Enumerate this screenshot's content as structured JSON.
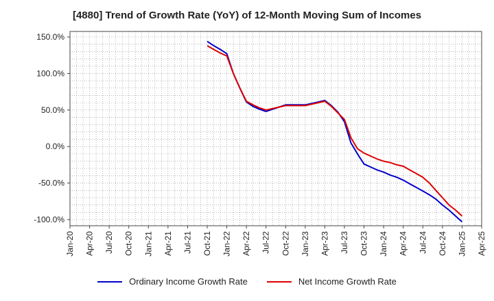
{
  "chart_data": {
    "type": "line",
    "title": "[4880]  Trend of Growth Rate (YoY) of 12-Month Moving Sum of Incomes",
    "xlabel": "",
    "ylabel": "",
    "ylim": [
      -105,
      150
    ],
    "y_ticks": [
      "150.0%",
      "100.0%",
      "50.0%",
      "0.0%",
      "-50.0%",
      "-100.0%"
    ],
    "y_tick_values": [
      150,
      100,
      50,
      0,
      -50,
      -100
    ],
    "x_ticks": [
      "Jan-20",
      "Apr-20",
      "Jul-20",
      "Oct-20",
      "Jan-21",
      "Apr-21",
      "Jul-21",
      "Oct-21",
      "Jan-22",
      "Apr-22",
      "Jul-22",
      "Oct-22",
      "Jan-23",
      "Apr-23",
      "Jul-23",
      "Oct-23",
      "Jan-24",
      "Apr-24",
      "Jul-24",
      "Oct-24",
      "Jan-25",
      "Apr-25"
    ],
    "x": [
      "Oct-21",
      "Nov-21",
      "Dec-21",
      "Jan-22",
      "Feb-22",
      "Mar-22",
      "Apr-22",
      "May-22",
      "Jun-22",
      "Jul-22",
      "Aug-22",
      "Sep-22",
      "Oct-22",
      "Nov-22",
      "Dec-22",
      "Jan-23",
      "Feb-23",
      "Mar-23",
      "Apr-23",
      "May-23",
      "Jun-23",
      "Jul-23",
      "Aug-23",
      "Sep-23",
      "Oct-23",
      "Nov-23",
      "Dec-23",
      "Jan-24",
      "Feb-24",
      "Mar-24",
      "Apr-24",
      "May-24",
      "Jun-24",
      "Jul-24",
      "Aug-24",
      "Sep-24",
      "Oct-24",
      "Nov-24",
      "Dec-24",
      "Jan-25"
    ],
    "grid": true,
    "legend_position": "bottom",
    "series": [
      {
        "name": "Ordinary Income Growth Rate",
        "color": "#0000cc",
        "values": [
          144,
          138,
          133,
          127,
          100,
          80,
          61,
          55,
          51,
          48,
          51,
          54,
          57,
          57,
          57,
          57,
          59,
          61,
          63,
          56,
          47,
          34,
          5,
          -10,
          -24,
          -28,
          -32,
          -35,
          -39,
          -42,
          -46,
          -51,
          -56,
          -61,
          -66,
          -72,
          -80,
          -87,
          -95,
          -103
        ]
      },
      {
        "name": "Net Income Growth Rate",
        "color": "#dd0000",
        "values": [
          138,
          133,
          128,
          124,
          100,
          80,
          62,
          57,
          53,
          50,
          52,
          54,
          56,
          56,
          56,
          56,
          58,
          60,
          62,
          55,
          46,
          37,
          12,
          -3,
          -9,
          -13,
          -17,
          -20,
          -22,
          -25,
          -27,
          -32,
          -37,
          -42,
          -50,
          -60,
          -70,
          -80,
          -87,
          -95
        ]
      }
    ]
  }
}
